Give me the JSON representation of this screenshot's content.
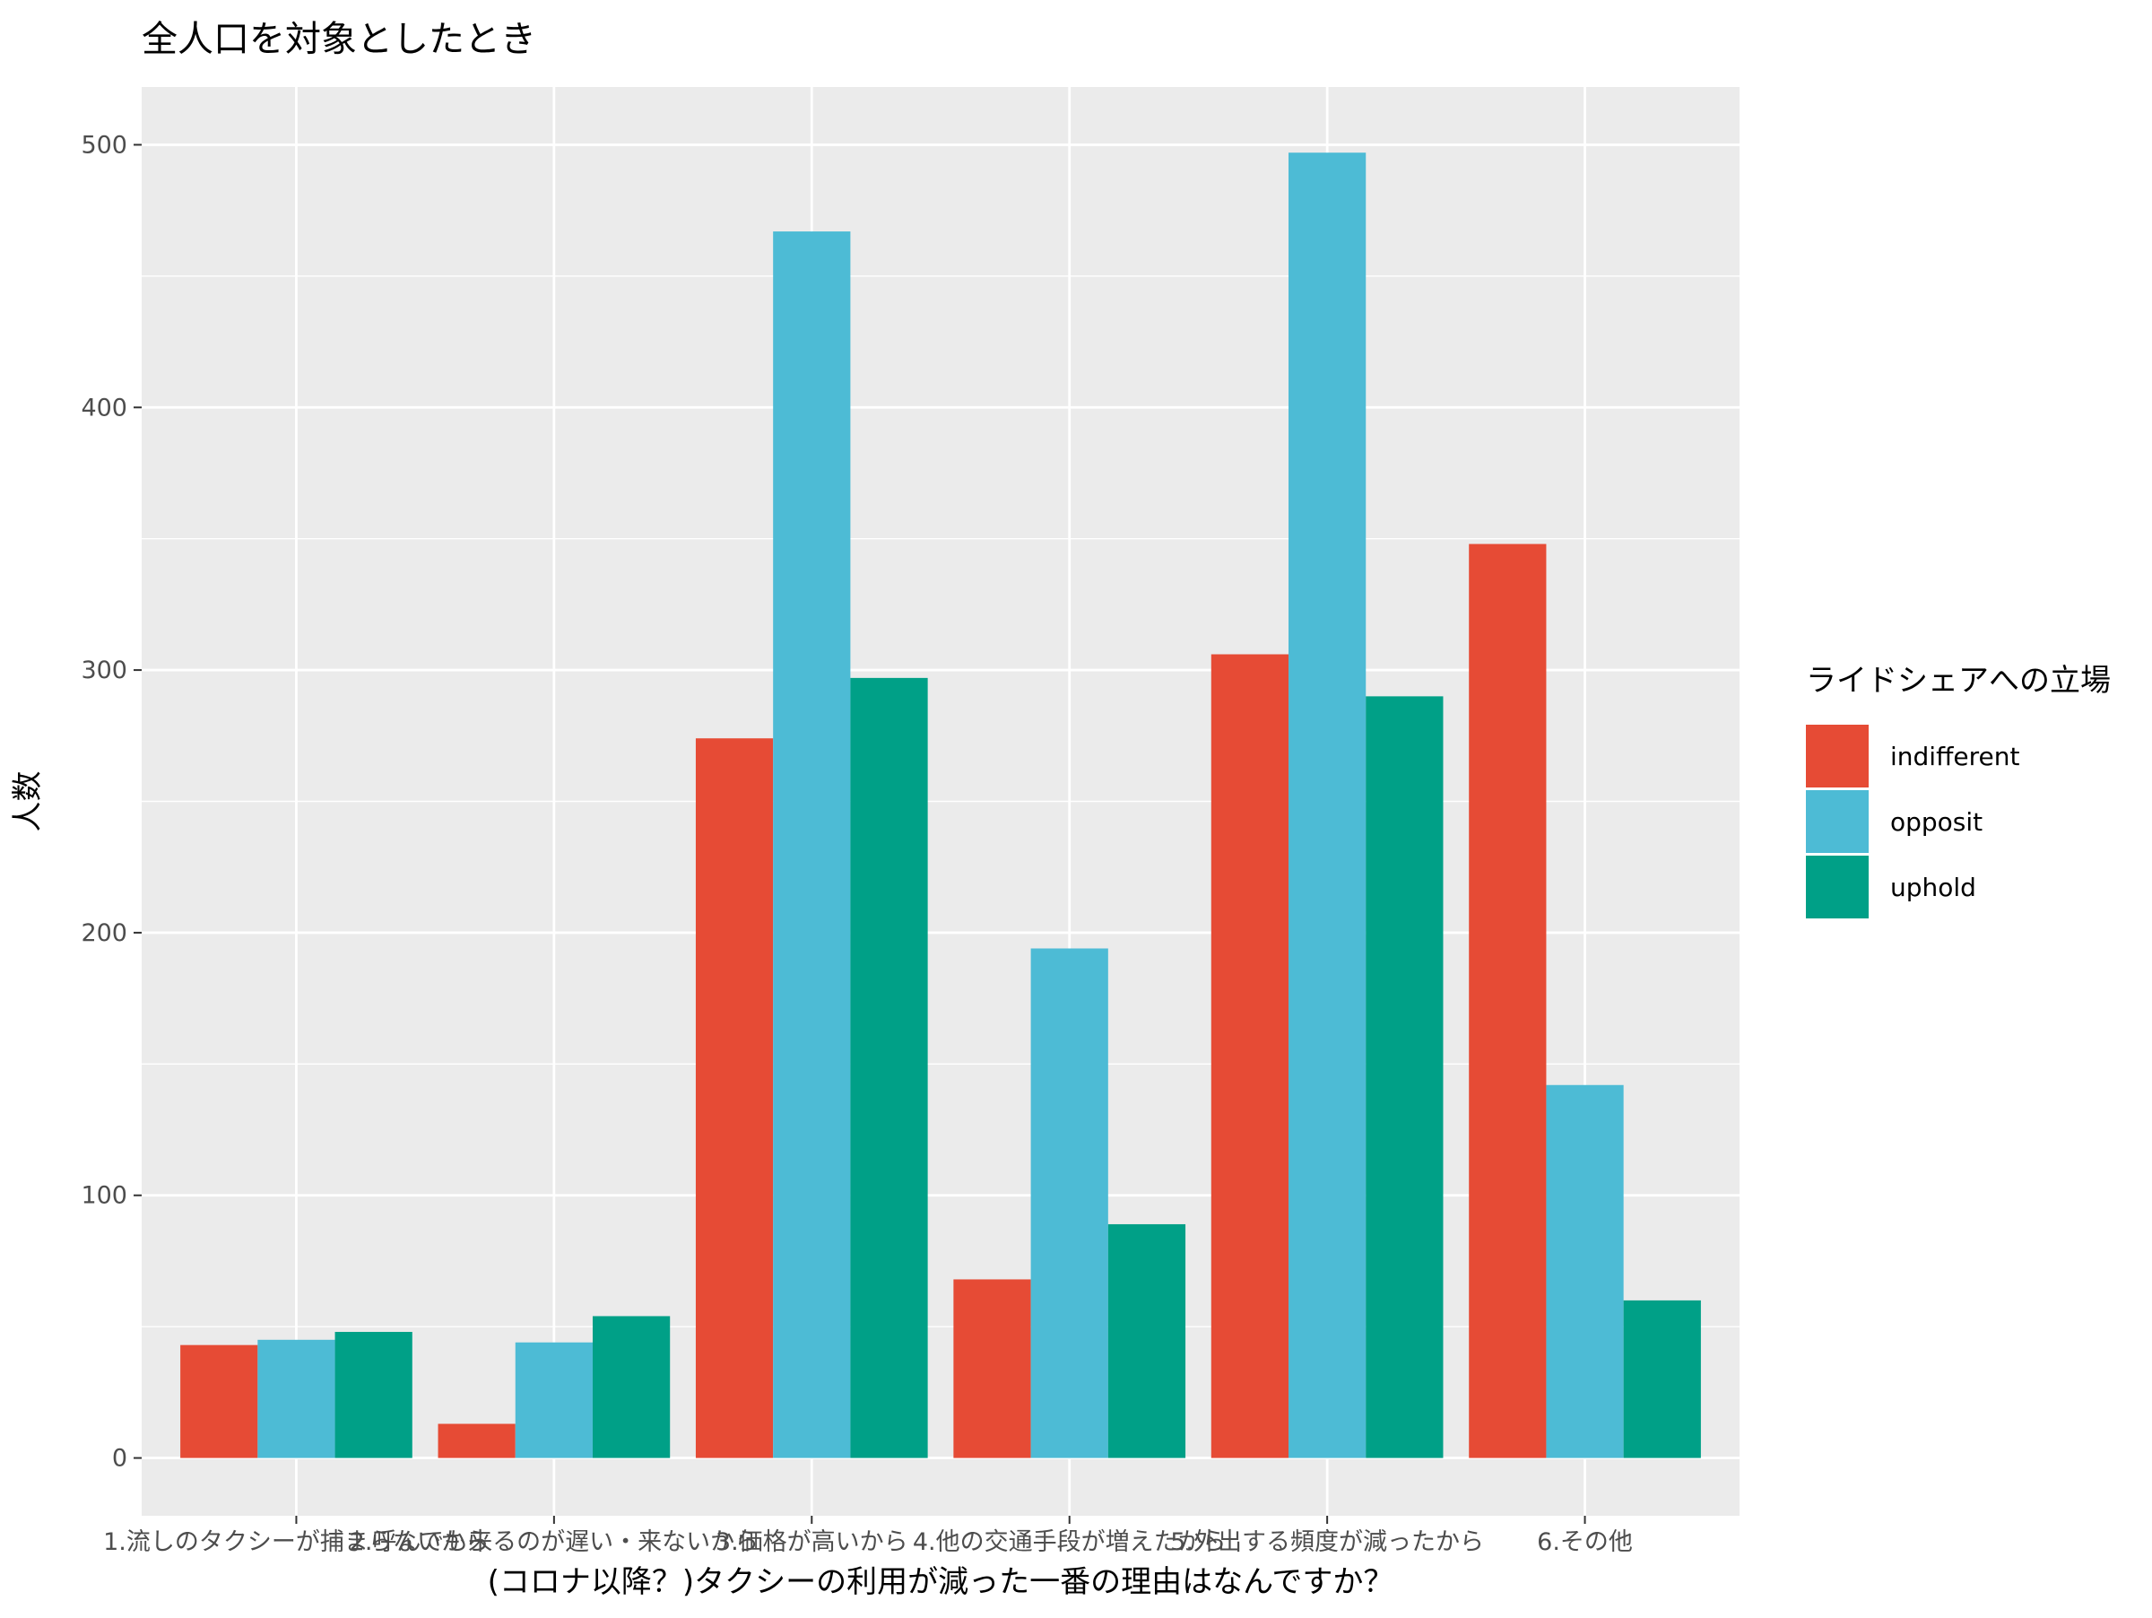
{
  "chart_data": {
    "type": "bar",
    "title": "全人口を対象としたとき",
    "xlabel": "(コロナ以降？)タクシーの利用が減った一番の理由はなんですか？",
    "ylabel": "人数",
    "categories": [
      "1.流しのタクシーが捕まらないから",
      "2.呼んでも来るのが遅い・来ないから",
      "3.価格が高いから",
      "4.他の交通手段が増えたから",
      "5.外出する頻度が減ったから",
      "6.その他"
    ],
    "series": [
      {
        "name": "indifferent",
        "color": "#E64B35",
        "values": [
          43,
          13,
          274,
          68,
          306,
          348
        ]
      },
      {
        "name": "opposit",
        "color": "#4DBBD5",
        "values": [
          45,
          44,
          467,
          194,
          497,
          142
        ]
      },
      {
        "name": "uphold",
        "color": "#00A087",
        "values": [
          48,
          54,
          297,
          89,
          290,
          60
        ]
      }
    ],
    "ylim": [
      -22,
      522
    ],
    "yticks": [
      0,
      100,
      200,
      300,
      400,
      500
    ],
    "legend": {
      "title": "ライドシェアへの立場",
      "position": "right"
    },
    "grid": true,
    "panel_background": "#EBEBEB"
  }
}
